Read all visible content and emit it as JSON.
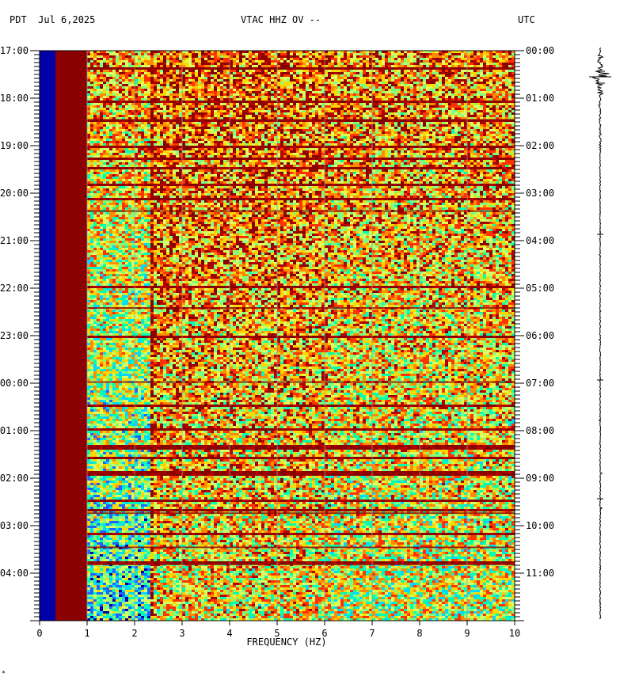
{
  "header": {
    "left": "PDT  Jul 6,2025",
    "center": "VTAC HHZ OV --",
    "right": "UTC"
  },
  "chart_data": {
    "type": "heatmap",
    "title": "VTAC HHZ OV --",
    "date": "Jul 6,2025",
    "left_timezone": "PDT",
    "right_timezone": "UTC",
    "xlabel": "FREQUENCY (HZ)",
    "xlim": [
      0,
      10
    ],
    "x_ticks": [
      "0",
      "1",
      "2",
      "3",
      "4",
      "5",
      "6",
      "7",
      "8",
      "9",
      "10"
    ],
    "left_time_labels": [
      "17:00",
      "18:00",
      "19:00",
      "20:00",
      "21:00",
      "22:00",
      "23:00",
      "00:00",
      "01:00",
      "02:00",
      "03:00",
      "04:00"
    ],
    "right_time_labels": [
      "00:00",
      "01:00",
      "02:00",
      "03:00",
      "04:00",
      "05:00",
      "06:00",
      "07:00",
      "08:00",
      "09:00",
      "10:00",
      "11:00"
    ],
    "duration_hours": 12,
    "grid": true,
    "colors": {
      "low": "#8b0000",
      "mid_low": "#ff6a00",
      "mid": "#ffd700",
      "mid_high": "#7fff7f",
      "high": "#00d8ff",
      "very_high": "#0000a8"
    },
    "notes_visible": {
      "band_0_to_0_3hz": "dark blue",
      "band_0_3_to_1hz": "dark red",
      "band_1_to_2_3hz": "cyan / green / yellow",
      "band_above_2_3hz": "mixed red / orange / yellow"
    }
  },
  "seismogram": {
    "color": "#000000"
  },
  "corner_mark": "*"
}
